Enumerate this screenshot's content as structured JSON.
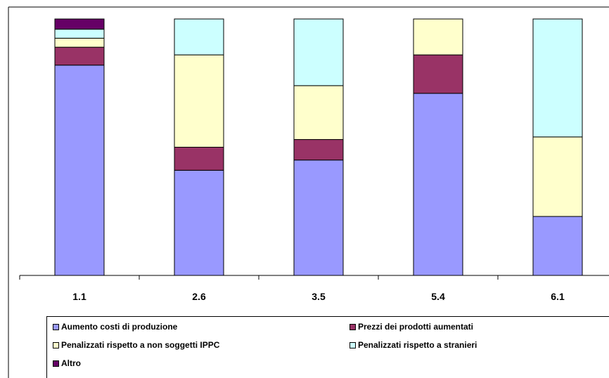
{
  "chart_data": {
    "type": "bar",
    "stacked": true,
    "percent_stacked": true,
    "categories": [
      "1.1",
      "2.6",
      "3.5",
      "5.4",
      "6.1"
    ],
    "series": [
      {
        "name": "Aumento costi di produzione",
        "color": "#9999FF",
        "values": [
          82,
          41,
          45,
          71,
          23
        ]
      },
      {
        "name": "Prezzi dei prodotti aumentati",
        "color": "#993366",
        "values": [
          7,
          9,
          8,
          15,
          0
        ]
      },
      {
        "name": "Penalizzati rispetto a non soggetti IPPC",
        "color": "#FFFFCC",
        "values": [
          3.5,
          36,
          21,
          14,
          31
        ]
      },
      {
        "name": "Penalizzati rispetto a stranieri",
        "color": "#CCFFFF",
        "values": [
          3.5,
          14,
          26,
          0,
          46
        ]
      },
      {
        "name": "Altro",
        "color": "#660066",
        "values": [
          4,
          0,
          0,
          0,
          0
        ]
      }
    ],
    "ylim": [
      0,
      100
    ],
    "grid": false,
    "legend_position": "bottom"
  }
}
